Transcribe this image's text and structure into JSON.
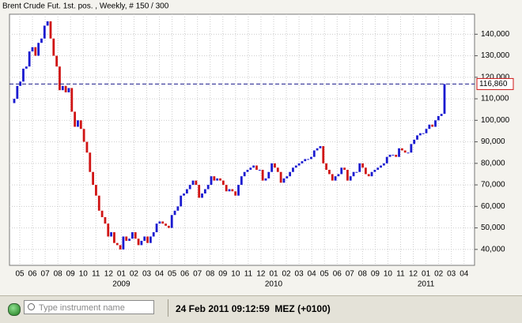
{
  "header": {
    "title": "Brent Crude Fut. 1st. pos. , Weekly, # 150 / 300"
  },
  "chart_data": {
    "type": "candlestick",
    "open": [
      108000,
      110000,
      116000,
      118000,
      124000,
      125000,
      132000,
      134000,
      130000,
      136000,
      138000,
      144000,
      146000,
      138000,
      130000,
      125000,
      114000,
      116000,
      113000,
      115000,
      104000,
      97000,
      100000,
      96000,
      90000,
      85000,
      76000,
      70000,
      65000,
      58000,
      55000,
      52000,
      46000,
      48000,
      43000,
      42000,
      40000,
      46000,
      44000,
      45000,
      48000,
      45000,
      42000,
      44000,
      46000,
      43000,
      46000,
      48000,
      52000,
      53000,
      52000,
      51000,
      50000,
      56000,
      58000,
      60000,
      65000,
      66000,
      68000,
      70000,
      72000,
      70000,
      64000,
      66000,
      68000,
      70000,
      74000,
      72000,
      73000,
      72000,
      70000,
      67000,
      68000,
      67000,
      65000,
      70000,
      74000,
      76000,
      77000,
      78000,
      79000,
      77000,
      77000,
      72000,
      73000,
      76000,
      80000,
      78000,
      76000,
      71000,
      73000,
      74000,
      76000,
      78000,
      79000,
      80000,
      81000,
      82000,
      82000,
      83000,
      86000,
      87000,
      88000,
      80000,
      77000,
      75000,
      72000,
      74000,
      75000,
      78000,
      77000,
      72000,
      74000,
      76000,
      76000,
      80000,
      78000,
      75000,
      74000,
      76000,
      77000,
      78000,
      79000,
      80000,
      83000,
      84000,
      84000,
      83000,
      87000,
      86000,
      85000,
      85000,
      89000,
      91000,
      93000,
      94000,
      94000,
      96000,
      98000,
      97000,
      100000,
      102000,
      103000
    ],
    "close": [
      110000,
      116000,
      118000,
      124000,
      125000,
      132000,
      134000,
      130000,
      136000,
      138000,
      144000,
      146000,
      138000,
      130000,
      125000,
      114000,
      116000,
      113000,
      115000,
      104000,
      97000,
      100000,
      96000,
      90000,
      85000,
      76000,
      70000,
      65000,
      58000,
      55000,
      52000,
      46000,
      48000,
      43000,
      42000,
      40000,
      46000,
      44000,
      45000,
      48000,
      45000,
      42000,
      44000,
      46000,
      43000,
      46000,
      48000,
      52000,
      53000,
      52000,
      51000,
      50000,
      56000,
      58000,
      60000,
      65000,
      66000,
      68000,
      70000,
      72000,
      70000,
      64000,
      66000,
      68000,
      70000,
      74000,
      72000,
      73000,
      72000,
      70000,
      67000,
      68000,
      67000,
      65000,
      70000,
      74000,
      76000,
      77000,
      78000,
      79000,
      77000,
      77000,
      72000,
      73000,
      76000,
      80000,
      78000,
      76000,
      71000,
      73000,
      74000,
      76000,
      78000,
      79000,
      80000,
      81000,
      82000,
      82000,
      83000,
      86000,
      87000,
      88000,
      80000,
      77000,
      75000,
      72000,
      74000,
      75000,
      78000,
      77000,
      72000,
      74000,
      76000,
      76000,
      80000,
      78000,
      75000,
      74000,
      76000,
      77000,
      78000,
      79000,
      80000,
      83000,
      84000,
      84000,
      83000,
      87000,
      86000,
      85000,
      85000,
      89000,
      91000,
      93000,
      94000,
      94000,
      96000,
      98000,
      97000,
      100000,
      102000,
      103000,
      116860
    ],
    "up_color": "#1a1ad0",
    "down_color": "#d01414",
    "last_value": 116860,
    "last_label": "116,860",
    "months": [
      "05",
      "06",
      "07",
      "08",
      "09",
      "10",
      "11",
      "12",
      "01",
      "02",
      "03",
      "04",
      "05",
      "06",
      "07",
      "08",
      "09",
      "10",
      "11",
      "12",
      "01",
      "02",
      "03",
      "04",
      "05",
      "06",
      "07",
      "08",
      "09",
      "10",
      "11",
      "12",
      "01",
      "02",
      "03",
      "04"
    ],
    "years": [
      {
        "month": 8,
        "label": "2009"
      },
      {
        "month": 20,
        "label": "2010"
      },
      {
        "month": 32,
        "label": "2011"
      }
    ],
    "ylim": [
      32600,
      149300
    ],
    "yticks": [
      {
        "value": 40000,
        "label": "40,000"
      },
      {
        "value": 50000,
        "label": "50,000"
      },
      {
        "value": 60000,
        "label": "60,000"
      },
      {
        "value": 70000,
        "label": "70,000"
      },
      {
        "value": 80000,
        "label": "80,000"
      },
      {
        "value": 90000,
        "label": "90,000"
      },
      {
        "value": 100000,
        "label": "100,000"
      },
      {
        "value": 110000,
        "label": "110,000"
      },
      {
        "value": 120000,
        "label": "120,000"
      },
      {
        "value": 130000,
        "label": "130,000"
      },
      {
        "value": 140000,
        "label": "140,000"
      }
    ],
    "grid": true
  },
  "footer": {
    "search_placeholder": "Type instrument name",
    "timestamp": "24 Feb 2011 09:12:59  MEZ (+0100)"
  }
}
